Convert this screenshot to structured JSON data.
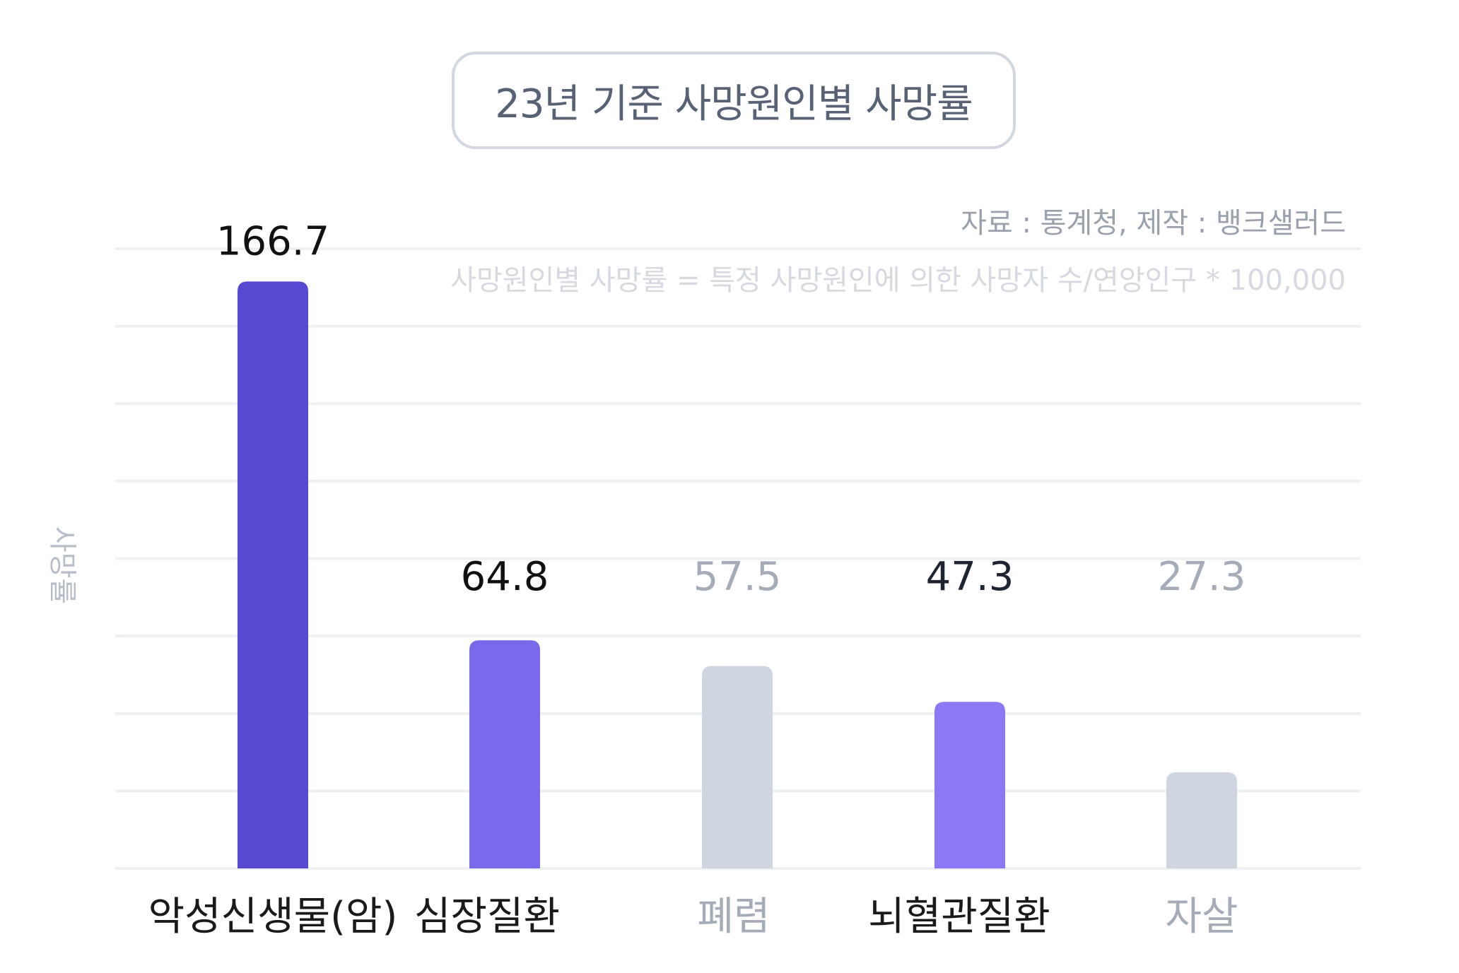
{
  "chart_data": {
    "type": "bar",
    "title": "23년 기준 사망원인별 사망률",
    "source": "자료 : 통계청, 제작 : 뱅크샐러드",
    "formula_note": "사망원인별 사망률 = 특정 사망원인에 의한 사망자 수/연앙인구 * 100,000",
    "ylabel": "사망률",
    "xlabel": "",
    "ylim": [
      0,
      176
    ],
    "grid": true,
    "categories": [
      "악성신생물(암)",
      "심장질환",
      "폐렴",
      "뇌혈관질환",
      "자살"
    ],
    "values": [
      166.7,
      64.8,
      57.5,
      47.3,
      27.3
    ],
    "bar_colors": [
      "#5849d2",
      "#786aea",
      "#d0d6df",
      "#8b78f5",
      "#d0d6df"
    ],
    "value_label_colors": [
      "#111111",
      "#111111",
      "#a6acb7",
      "#1e2430",
      "#a6acb7"
    ],
    "category_label_colors": [
      "#1a1a1a",
      "#1a1a1a",
      "#a6acb7",
      "#1a1a1a",
      "#a6acb7"
    ]
  }
}
